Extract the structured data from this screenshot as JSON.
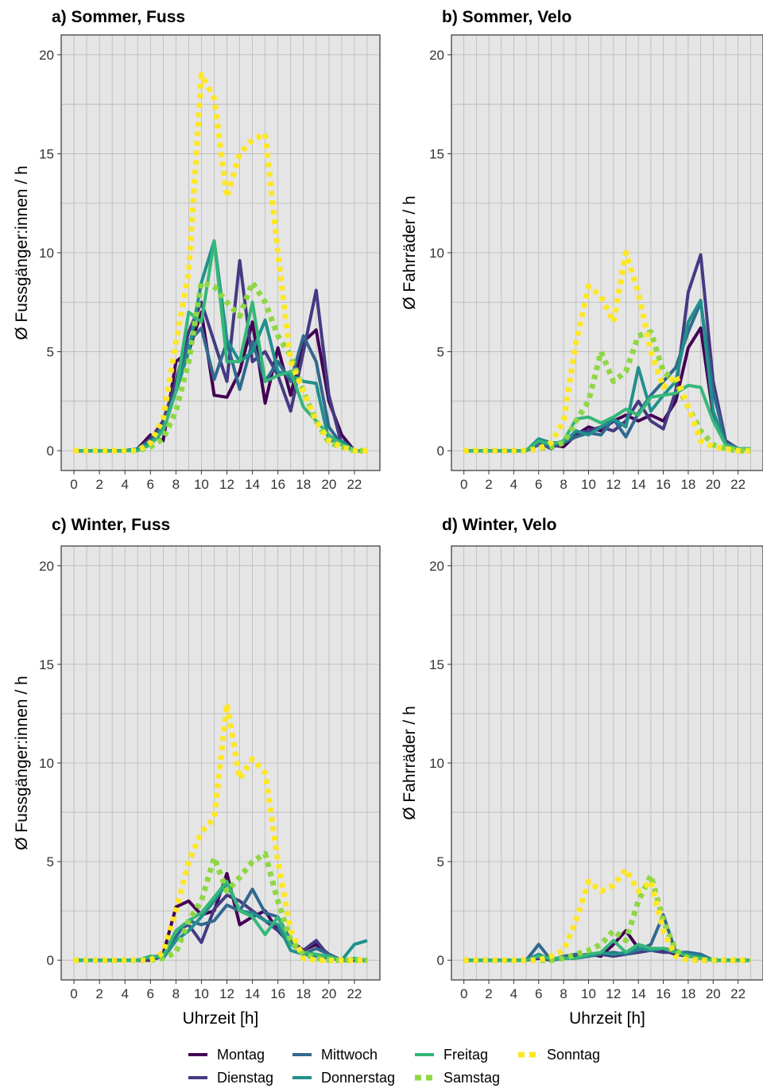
{
  "chart_data": {
    "type": "line",
    "x": [
      0,
      1,
      2,
      3,
      4,
      5,
      6,
      7,
      8,
      9,
      10,
      11,
      12,
      13,
      14,
      15,
      16,
      17,
      18,
      19,
      20,
      21,
      22,
      23
    ],
    "xticks": [
      0,
      2,
      4,
      6,
      8,
      10,
      12,
      14,
      16,
      18,
      20,
      22
    ],
    "ylim": [
      -1,
      21
    ],
    "yticks": [
      0,
      5,
      10,
      15,
      20
    ],
    "grid": true,
    "legend_position": "bottom",
    "legend": [
      {
        "name": "Montag",
        "color": "#440154",
        "style": "solid"
      },
      {
        "name": "Dienstag",
        "color": "#443a83",
        "style": "solid"
      },
      {
        "name": "Mittwoch",
        "color": "#31688e",
        "style": "solid"
      },
      {
        "name": "Donnerstag",
        "color": "#21908c",
        "style": "solid"
      },
      {
        "name": "Freitag",
        "color": "#35b779",
        "style": "solid"
      },
      {
        "name": "Samstag",
        "color": "#8fd744",
        "style": "dotted"
      },
      {
        "name": "Sonntag",
        "color": "#fde725",
        "style": "dotted"
      }
    ],
    "panels": [
      {
        "title": "a) Sommer, Fuss",
        "ylabel": "Ø Fussgänger:innen / h",
        "xlabel": "",
        "series": [
          {
            "name": "Montag",
            "values": [
              0,
              0,
              0,
              0,
              0,
              0.1,
              0.8,
              0.5,
              4.5,
              5.0,
              7.0,
              2.8,
              2.7,
              4.0,
              6.5,
              2.4,
              5.2,
              2.8,
              5.5,
              6.1,
              2.5,
              0.8,
              0,
              0
            ]
          },
          {
            "name": "Dienstag",
            "values": [
              0,
              0,
              0,
              0,
              0,
              0.1,
              0.6,
              1.5,
              3.5,
              6.0,
              7.5,
              5.5,
              3.5,
              9.6,
              4.5,
              5.0,
              3.8,
              2.0,
              5.0,
              8.1,
              2.8,
              0.3,
              0,
              0
            ]
          },
          {
            "name": "Mittwoch",
            "values": [
              0,
              0,
              0,
              0,
              0,
              0.1,
              0.5,
              1.0,
              3.0,
              5.5,
              6.2,
              3.6,
              5.5,
              3.1,
              5.5,
              3.5,
              4.5,
              3.5,
              5.8,
              4.5,
              1.2,
              0.3,
              0,
              0
            ]
          },
          {
            "name": "Donnerstag",
            "values": [
              0,
              0,
              0,
              0,
              0,
              0.1,
              0.4,
              1.2,
              3.0,
              5.0,
              8.5,
              10.6,
              5.6,
              4.5,
              5.0,
              6.6,
              4.0,
              3.8,
              3.5,
              3.4,
              0.5,
              0.5,
              0,
              0
            ]
          },
          {
            "name": "Freitag",
            "values": [
              0,
              0,
              0,
              0,
              0,
              0,
              0.3,
              1.0,
              3.0,
              7.0,
              6.5,
              10.6,
              4.5,
              4.5,
              7.5,
              3.5,
              3.8,
              4.0,
              2.2,
              1.5,
              0.8,
              0.3,
              0,
              0
            ]
          },
          {
            "name": "Samstag",
            "values": [
              0,
              0,
              0,
              0,
              0,
              0,
              0.2,
              0.6,
              2.0,
              4.5,
              8.5,
              8.3,
              7.5,
              6.8,
              8.5,
              7.5,
              5.8,
              4.8,
              3.0,
              1.5,
              0.4,
              0.2,
              0,
              0
            ]
          },
          {
            "name": "Sonntag",
            "values": [
              0,
              0,
              0,
              0,
              0,
              0,
              0.4,
              1.6,
              5.5,
              9.0,
              19.0,
              17.8,
              12.8,
              15.0,
              15.7,
              16.0,
              10.0,
              4.5,
              3.0,
              1.5,
              0.5,
              0.2,
              0,
              0
            ]
          }
        ]
      },
      {
        "title": "b) Sommer, Velo",
        "ylabel": "Ø Fahrräder / h",
        "xlabel": "",
        "series": [
          {
            "name": "Montag",
            "values": [
              0,
              0,
              0,
              0,
              0,
              0,
              0.3,
              0.3,
              0.2,
              0.8,
              1.2,
              1.0,
              1.5,
              1.8,
              1.5,
              1.8,
              1.5,
              2.5,
              5.2,
              6.2,
              1.8,
              0.4,
              0.1,
              0.1
            ]
          },
          {
            "name": "Dienstag",
            "values": [
              0,
              0,
              0,
              0,
              0,
              0,
              0.4,
              0.1,
              0.5,
              0.9,
              1.0,
              1.2,
              1.0,
              1.5,
              2.5,
              1.5,
              1.1,
              3.0,
              8.0,
              9.9,
              3.5,
              0.5,
              0.1,
              0.1
            ]
          },
          {
            "name": "Mittwoch",
            "values": [
              0,
              0,
              0,
              0,
              0,
              0,
              0.3,
              0.2,
              0.4,
              0.7,
              0.9,
              0.8,
              1.6,
              0.7,
              1.9,
              2.8,
              3.5,
              4.2,
              6.0,
              7.5,
              3.0,
              0.4,
              0.1,
              0.1
            ]
          },
          {
            "name": "Donnerstag",
            "values": [
              0,
              0,
              0,
              0,
              0,
              0,
              0.6,
              0.4,
              0.4,
              1.0,
              0.8,
              1.2,
              1.6,
              1.2,
              4.2,
              2.0,
              2.8,
              3.5,
              6.5,
              7.6,
              2.0,
              0.3,
              0.1,
              0.1
            ]
          },
          {
            "name": "Freitag",
            "values": [
              0,
              0,
              0,
              0,
              0,
              0,
              0.5,
              0.3,
              0.5,
              1.6,
              1.7,
              1.4,
              1.7,
              2.1,
              1.8,
              2.7,
              2.8,
              2.9,
              3.3,
              3.2,
              1.5,
              0.3,
              0.1,
              0.1
            ]
          },
          {
            "name": "Samstag",
            "values": [
              0,
              0,
              0,
              0,
              0,
              0,
              0.1,
              0.2,
              0.4,
              1.5,
              2.5,
              5.0,
              3.5,
              4.0,
              5.8,
              6.0,
              4.0,
              3.5,
              2.2,
              1.0,
              0.3,
              0.1,
              0,
              0
            ]
          },
          {
            "name": "Sonntag",
            "values": [
              0,
              0,
              0,
              0,
              0,
              0,
              0.1,
              0.4,
              1.5,
              5.5,
              8.3,
              7.8,
              6.5,
              10.0,
              8.0,
              5.0,
              3.2,
              3.8,
              2.2,
              0.5,
              0.2,
              0.1,
              0,
              0
            ]
          }
        ]
      },
      {
        "title": "c) Winter, Fuss",
        "ylabel": "Ø Fussgänger:innen / h",
        "xlabel": "Uhrzeit [h]",
        "series": [
          {
            "name": "Montag",
            "values": [
              0,
              0,
              0,
              0,
              0,
              0,
              0,
              0.3,
              2.7,
              3.0,
              2.3,
              2.5,
              4.4,
              1.8,
              2.2,
              2.5,
              1.5,
              1.0,
              0.5,
              0.8,
              0.3,
              0,
              0,
              0
            ]
          },
          {
            "name": "Dienstag",
            "values": [
              0,
              0,
              0,
              0,
              0,
              0,
              0,
              0.2,
              1.5,
              1.8,
              0.9,
              2.6,
              3.3,
              3.0,
              2.5,
              2.0,
              1.5,
              0.8,
              0.5,
              1.0,
              0.2,
              0,
              0,
              0
            ]
          },
          {
            "name": "Mittwoch",
            "values": [
              0,
              0,
              0,
              0,
              0,
              0,
              0.1,
              0.3,
              1.2,
              2.0,
              1.8,
              2.0,
              2.8,
              2.5,
              3.6,
              2.4,
              2.2,
              1.0,
              0.3,
              0.6,
              0.3,
              0,
              0,
              0
            ]
          },
          {
            "name": "Donnerstag",
            "values": [
              0,
              0,
              0,
              0,
              0,
              0,
              0.2,
              0.1,
              1.0,
              1.5,
              2.2,
              3.0,
              3.9,
              2.5,
              2.4,
              2.0,
              1.8,
              0.5,
              0.3,
              0.2,
              0.1,
              0,
              0.8,
              1.0
            ]
          },
          {
            "name": "Freitag",
            "values": [
              0,
              0,
              0,
              0,
              0,
              0,
              0.2,
              0.2,
              1.5,
              2.0,
              2.4,
              3.2,
              4.0,
              2.5,
              2.2,
              1.3,
              2.2,
              0.8,
              0.4,
              0.3,
              0.2,
              0,
              0.1,
              0
            ]
          },
          {
            "name": "Samstag",
            "values": [
              0,
              0,
              0,
              0,
              0,
              0,
              0,
              0.1,
              0.4,
              2.0,
              3.0,
              5.2,
              3.5,
              4.2,
              5.0,
              5.4,
              3.0,
              1.0,
              0.3,
              0.1,
              0,
              0,
              0,
              0
            ]
          },
          {
            "name": "Sonntag",
            "values": [
              0,
              0,
              0,
              0,
              0,
              0,
              0,
              0.4,
              2.5,
              5.0,
              6.5,
              7.2,
              13.0,
              9.2,
              10.2,
              9.5,
              5.0,
              1.5,
              0.1,
              0,
              0,
              0,
              0,
              0
            ]
          }
        ]
      },
      {
        "title": "d) Winter, Velo",
        "ylabel": "Ø Fahrräder / h",
        "xlabel": "Uhrzeit [h]",
        "series": [
          {
            "name": "Montag",
            "values": [
              0,
              0,
              0,
              0,
              0,
              0,
              0.1,
              0,
              0.1,
              0.2,
              0.3,
              0.2,
              0.8,
              1.5,
              0.6,
              0.5,
              0.5,
              0.3,
              0.2,
              0.1,
              0,
              0,
              0,
              0
            ]
          },
          {
            "name": "Dienstag",
            "values": [
              0,
              0,
              0,
              0,
              0,
              0,
              0.1,
              0,
              0.1,
              0.1,
              0.2,
              0.3,
              0.2,
              0.3,
              0.4,
              0.5,
              0.4,
              0.4,
              0.3,
              0.2,
              0,
              0,
              0,
              0
            ]
          },
          {
            "name": "Mittwoch",
            "values": [
              0,
              0,
              0,
              0,
              0,
              0,
              0.8,
              0,
              0.2,
              0.3,
              0.2,
              0.3,
              0.4,
              0.3,
              0.5,
              0.8,
              2.3,
              0.4,
              0.4,
              0.3,
              0,
              0,
              0,
              0
            ]
          },
          {
            "name": "Donnerstag",
            "values": [
              0,
              0,
              0,
              0,
              0,
              0,
              0.3,
              0,
              0.1,
              0.1,
              0.2,
              0.4,
              0.3,
              0.4,
              0.6,
              0.5,
              0.6,
              0.5,
              0.3,
              0.2,
              0,
              0,
              0,
              0
            ]
          },
          {
            "name": "Freitag",
            "values": [
              0,
              0,
              0,
              0,
              0,
              0,
              0.2,
              0.1,
              0.1,
              0.1,
              0.3,
              0.4,
              1.0,
              0.4,
              0.8,
              0.6,
              0.6,
              0.4,
              0.2,
              0.1,
              0,
              0,
              0,
              0
            ]
          },
          {
            "name": "Samstag",
            "values": [
              0,
              0,
              0,
              0,
              0,
              0,
              0,
              0,
              0.1,
              0.3,
              0.5,
              0.8,
              1.5,
              1.0,
              3.0,
              4.3,
              2.0,
              0.5,
              0.1,
              0,
              0,
              0,
              0,
              0
            ]
          },
          {
            "name": "Sonntag",
            "values": [
              0,
              0,
              0,
              0,
              0,
              0,
              0,
              0.2,
              0.5,
              2.0,
              4.0,
              3.5,
              3.8,
              4.6,
              3.5,
              4.0,
              1.5,
              0.2,
              0,
              0,
              0,
              0,
              0,
              0
            ]
          }
        ]
      }
    ]
  }
}
